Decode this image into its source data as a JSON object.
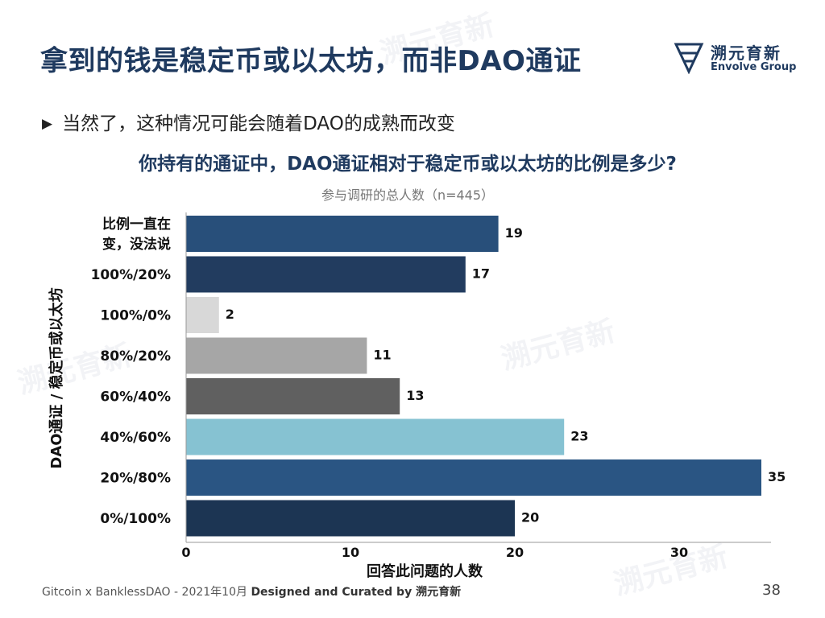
{
  "header": {
    "title": "拿到的钱是稳定币或以太坊，而非DAO通证",
    "brand_cn": "溯元育新",
    "brand_en": "Envolve Group"
  },
  "bullet": "当然了，这种情况可能会随着DAO的成熟而改变",
  "watermark_text": "溯元育新",
  "chart_data": {
    "type": "bar",
    "orientation": "horizontal",
    "title": "你持有的通证中，DAO通证相对于稳定币或以太坊的比例是多少?",
    "subtitle": "参与调研的总人数（n=445）",
    "xlabel": "回答此问题的人数",
    "ylabel": "DAO通证 / 稳定币或以太坊",
    "categories": [
      "比例一直在变，没法说",
      "100%/20%",
      "100%/0%",
      "80%/20%",
      "60%/40%",
      "40%/60%",
      "20%/80%",
      "0%/100%"
    ],
    "category_lines": [
      [
        "比例一直在",
        "变，没法说"
      ],
      [
        "100%/20%"
      ],
      [
        "100%/0%"
      ],
      [
        "80%/20%"
      ],
      [
        "60%/40%"
      ],
      [
        "40%/60%"
      ],
      [
        "20%/80%"
      ],
      [
        "0%/100%"
      ]
    ],
    "values": [
      19,
      17,
      2,
      11,
      13,
      23,
      35,
      20
    ],
    "colors": [
      "#284f7a",
      "#223c5f",
      "#d8d8d8",
      "#a6a6a6",
      "#606060",
      "#86c2d2",
      "#2a5583",
      "#1c3553"
    ],
    "xticks": [
      0,
      10,
      20,
      30
    ],
    "xlim": [
      0,
      35
    ],
    "grid": false
  },
  "footer": {
    "left": "Gitcoin x BanklessDAO - 2021年10月",
    "bold": "Designed and Curated by 溯元育新"
  },
  "page_number": "38"
}
